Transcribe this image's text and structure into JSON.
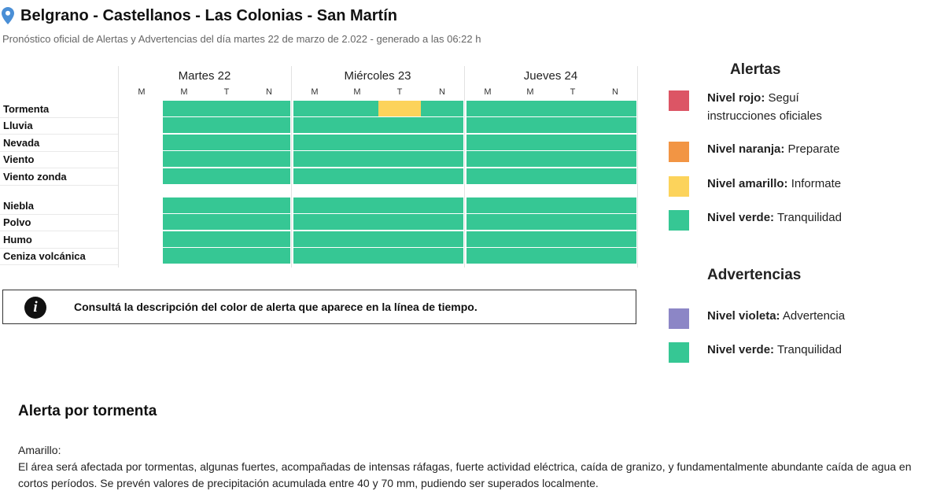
{
  "header": {
    "title": "Belgrano - Castellanos - Las Colonias - San Martín",
    "subtitle": "Pronóstico oficial de Alertas y Advertencias del día martes 22 de marzo de 2.022 - generado a las 06:22 h"
  },
  "timeline": {
    "days": [
      "Martes 22",
      "Miércoles 23",
      "Jueves 24"
    ],
    "slot_labels": [
      "M",
      "M",
      "T",
      "N",
      "M",
      "M",
      "T",
      "N",
      "M",
      "M",
      "T",
      "N"
    ],
    "rows": [
      "Tormenta",
      "Lluvia",
      "Nevada",
      "Viento",
      "Viento zonda",
      "Niebla",
      "Polvo",
      "Humo",
      "Ceniza volcánica"
    ],
    "levels": [
      [
        "none",
        "verde",
        "verde",
        "verde",
        "verde",
        "verde",
        "amarillo",
        "verde",
        "verde",
        "verde",
        "verde",
        "verde"
      ],
      [
        "none",
        "verde",
        "verde",
        "verde",
        "verde",
        "verde",
        "verde",
        "verde",
        "verde",
        "verde",
        "verde",
        "verde"
      ],
      [
        "none",
        "verde",
        "verde",
        "verde",
        "verde",
        "verde",
        "verde",
        "verde",
        "verde",
        "verde",
        "verde",
        "verde"
      ],
      [
        "none",
        "verde",
        "verde",
        "verde",
        "verde",
        "verde",
        "verde",
        "verde",
        "verde",
        "verde",
        "verde",
        "verde"
      ],
      [
        "none",
        "verde",
        "verde",
        "verde",
        "verde",
        "verde",
        "verde",
        "verde",
        "verde",
        "verde",
        "verde",
        "verde"
      ],
      [
        "none",
        "verde",
        "verde",
        "verde",
        "verde",
        "verde",
        "verde",
        "verde",
        "verde",
        "verde",
        "verde",
        "verde"
      ],
      [
        "none",
        "verde",
        "verde",
        "verde",
        "verde",
        "verde",
        "verde",
        "verde",
        "verde",
        "verde",
        "verde",
        "verde"
      ],
      [
        "none",
        "verde",
        "verde",
        "verde",
        "verde",
        "verde",
        "verde",
        "verde",
        "verde",
        "verde",
        "verde",
        "verde"
      ],
      [
        "none",
        "verde",
        "verde",
        "verde",
        "verde",
        "verde",
        "verde",
        "verde",
        "verde",
        "verde",
        "verde",
        "verde"
      ]
    ]
  },
  "colors": {
    "rojo": "#dc5565",
    "naranja": "#f29544",
    "amarillo": "#fcd35b",
    "verde": "#36c794",
    "violeta": "#8c86c6",
    "none": "#ffffff"
  },
  "info_box": {
    "icon": "info-icon",
    "text": "Consultá la descripción del color de alerta que aparece en la línea de tiempo."
  },
  "legend": {
    "alertas_title": "Alertas",
    "alertas": [
      {
        "level": "rojo",
        "label": "Nivel rojo:",
        "desc": "Seguí instrucciones oficiales"
      },
      {
        "level": "naranja",
        "label": "Nivel naranja:",
        "desc": "Preparate"
      },
      {
        "level": "amarillo",
        "label": "Nivel amarillo:",
        "desc": "Informate"
      },
      {
        "level": "verde",
        "label": "Nivel verde:",
        "desc": "Tranquilidad"
      }
    ],
    "advertencias_title": "Advertencias",
    "advertencias": [
      {
        "level": "violeta",
        "label": "Nivel violeta:",
        "desc": "Advertencia"
      },
      {
        "level": "verde",
        "label": "Nivel verde:",
        "desc": "Tranquilidad"
      }
    ]
  },
  "section": {
    "title": "Alerta por tormenta",
    "level_label": "Amarillo:",
    "body": "El área será afectada por tormentas, algunas fuertes, acompañadas de intensas ráfagas, fuerte actividad eléctrica, caída de granizo, y fundamentalmente abundante caída de agua en cortos períodos. Se prevén valores de precipitación acumulada entre 40 y 70 mm, pudiendo ser superados localmente."
  }
}
